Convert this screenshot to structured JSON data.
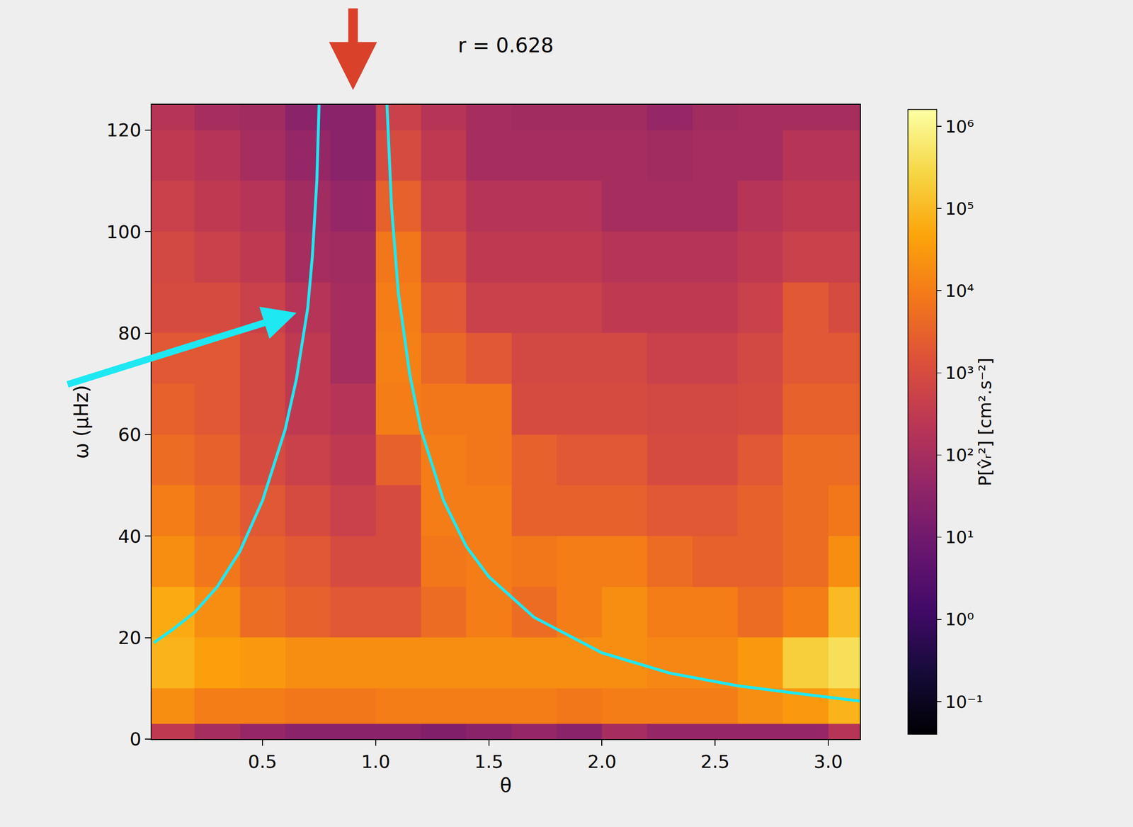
{
  "chart_data": {
    "type": "heatmap",
    "title": "r = 0.628",
    "x_label": "θ",
    "y_label": "ω (μHz)",
    "xlim": [
      0.01,
      3.14
    ],
    "xticks": [
      0.5,
      {
        "value": 1,
        "label": "1.0"
      },
      1.5,
      {
        "value": 2,
        "label": "2.0"
      },
      2.5,
      {
        "value": 3,
        "label": "3.0"
      }
    ],
    "ylim": [
      0,
      125
    ],
    "yticks": [
      0,
      20,
      40,
      60,
      80,
      100,
      120
    ],
    "theta_bins": [
      0,
      0.2,
      0.4,
      0.6,
      0.8,
      1.0,
      1.2,
      1.4,
      1.6,
      1.8,
      2.0,
      2.2,
      2.4,
      2.6,
      2.8,
      3.0,
      3.2
    ],
    "omega_bins": [
      0,
      3,
      10,
      20,
      30,
      40,
      50,
      60,
      70,
      80,
      90,
      100,
      110,
      120,
      130
    ],
    "cells": [
      [
        300,
        100,
        50,
        30,
        30,
        30,
        20,
        30,
        50,
        30,
        100,
        50,
        50,
        50,
        50,
        200
      ],
      [
        20000,
        10000,
        10000,
        8000,
        8000,
        10000,
        10000,
        10000,
        10000,
        8000,
        10000,
        10000,
        10000,
        20000,
        30000,
        80000
      ],
      [
        80000,
        40000,
        30000,
        20000,
        20000,
        20000,
        20000,
        20000,
        20000,
        20000,
        20000,
        15000,
        15000,
        30000,
        200000,
        400000
      ],
      [
        60000,
        20000,
        5000,
        3000,
        2000,
        2000,
        5000,
        10000,
        5000,
        10000,
        20000,
        10000,
        10000,
        5000,
        10000,
        100000
      ],
      [
        20000,
        8000,
        3000,
        2000,
        1000,
        1000,
        8000,
        10000,
        8000,
        10000,
        10000,
        5000,
        3000,
        3000,
        5000,
        20000
      ],
      [
        10000,
        5000,
        2000,
        1000,
        500,
        1000,
        10000,
        10000,
        3000,
        3000,
        3000,
        2000,
        2000,
        3000,
        5000,
        8000
      ],
      [
        5000,
        3000,
        1000,
        500,
        300,
        3000,
        10000,
        8000,
        3000,
        2000,
        2000,
        1000,
        1000,
        2000,
        5000,
        5000
      ],
      [
        3000,
        2000,
        800,
        300,
        200,
        10000,
        8000,
        8000,
        1000,
        1000,
        1000,
        800,
        800,
        1000,
        3000,
        3000
      ],
      [
        2000,
        2000,
        800,
        300,
        100,
        12000,
        4000,
        2000,
        800,
        800,
        800,
        500,
        500,
        800,
        2000,
        2000
      ],
      [
        1000,
        1000,
        500,
        200,
        100,
        10000,
        2000,
        500,
        500,
        500,
        300,
        300,
        300,
        500,
        2000,
        1000
      ],
      [
        800,
        500,
        300,
        100,
        80,
        8000,
        1000,
        300,
        300,
        300,
        200,
        200,
        200,
        300,
        500,
        500
      ],
      [
        500,
        300,
        200,
        80,
        50,
        3000,
        500,
        200,
        200,
        200,
        100,
        100,
        100,
        200,
        300,
        300
      ],
      [
        300,
        200,
        100,
        50,
        30,
        1000,
        300,
        100,
        100,
        100,
        100,
        80,
        100,
        100,
        200,
        200
      ],
      [
        200,
        100,
        80,
        30,
        30,
        500,
        200,
        100,
        80,
        80,
        80,
        50,
        80,
        100,
        100,
        100
      ]
    ],
    "colorbar_label": "P[v̂ᵣ²] [cm².s⁻²]",
    "clim": [
      0.04,
      1600000
    ],
    "cticks": [
      {
        "value": 0.1,
        "label": "10⁻¹"
      },
      {
        "value": 1,
        "label": "10⁰"
      },
      {
        "value": 10,
        "label": "10¹"
      },
      {
        "value": 100,
        "label": "10²"
      },
      {
        "value": 1000,
        "label": "10³"
      },
      {
        "value": 10000,
        "label": "10⁴"
      },
      {
        "value": 100000,
        "label": "10⁵"
      },
      {
        "value": 1000000,
        "label": "10⁶"
      }
    ],
    "series": [
      {
        "type": "line",
        "color": "#1ee8f2",
        "x": [
          0.02,
          0.1,
          0.2,
          0.3,
          0.4,
          0.5,
          0.6,
          0.65,
          0.7,
          0.72,
          0.74,
          0.75
        ],
        "values": [
          19,
          21.5,
          25,
          30,
          37,
          47,
          61,
          71,
          85,
          95,
          110,
          125
        ]
      },
      {
        "type": "line",
        "color": "#1ee8f2",
        "x": [
          1.05,
          1.07,
          1.1,
          1.15,
          1.2,
          1.3,
          1.4,
          1.5,
          1.7,
          2.0,
          2.3,
          2.6,
          2.9,
          3.14
        ],
        "values": [
          125,
          105,
          88,
          72,
          61,
          47,
          38,
          32,
          24,
          17,
          13,
          10.5,
          8.8,
          7.5
        ]
      }
    ]
  }
}
